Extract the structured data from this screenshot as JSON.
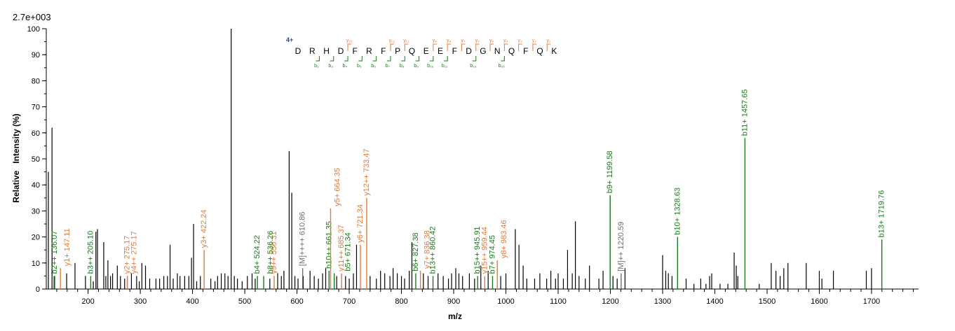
{
  "chart_data": {
    "type": "bar",
    "title": "",
    "max_intensity_label": "2.7e+003",
    "xlabel": "m/z",
    "ylabel": "Relative   Intensity (%)",
    "xlim": [
      120,
      1790
    ],
    "ylim": [
      0,
      100
    ],
    "x_ticks": [
      200,
      300,
      400,
      500,
      600,
      700,
      800,
      900,
      1000,
      1100,
      1200,
      1300,
      1400,
      1500,
      1600,
      1700
    ],
    "y_ticks": [
      0,
      10,
      20,
      30,
      40,
      50,
      60,
      70,
      80,
      90,
      100
    ],
    "colors": {
      "b_ion": "#1a7a1a",
      "y_ion": "#e07b3c",
      "precursor": "#6e6e6e",
      "noise": "#000000",
      "charge": "#1f3fbf"
    },
    "peptide": {
      "charge": "4+",
      "sequence": [
        "D",
        "R",
        "H",
        "D",
        "F",
        "R",
        "F",
        "P",
        "Q",
        "E",
        "E",
        "F",
        "D",
        "G",
        "N",
        "Q",
        "F",
        "Q",
        "K"
      ],
      "y_labels": [
        {
          "pos": 4,
          "label": "y₁₅"
        },
        {
          "pos": 7,
          "label": "y₁₂"
        },
        {
          "pos": 8,
          "label": "y₁₁"
        },
        {
          "pos": 10,
          "label": "y₉"
        },
        {
          "pos": 11,
          "label": "y₈"
        },
        {
          "pos": 12,
          "label": "y₇"
        },
        {
          "pos": 13,
          "label": "y₆"
        },
        {
          "pos": 14,
          "label": "y₅"
        },
        {
          "pos": 15,
          "label": "y₄"
        },
        {
          "pos": 16,
          "label": "y₃"
        },
        {
          "pos": 17,
          "label": "y₂"
        },
        {
          "pos": 18,
          "label": "y₁"
        }
      ],
      "b_labels": [
        {
          "pos": 1,
          "label": "b₂"
        },
        {
          "pos": 2,
          "label": "b₃"
        },
        {
          "pos": 3,
          "label": "b₄"
        },
        {
          "pos": 4,
          "label": "b₅"
        },
        {
          "pos": 5,
          "label": "b₆"
        },
        {
          "pos": 6,
          "label": "b₇"
        },
        {
          "pos": 7,
          "label": "b₈"
        },
        {
          "pos": 8,
          "label": "b₉"
        },
        {
          "pos": 9,
          "label": "b₁₀"
        },
        {
          "pos": 10,
          "label": "b₁₁"
        },
        {
          "pos": 12,
          "label": "b₁₃"
        },
        {
          "pos": 14,
          "label": "b₁₅"
        }
      ]
    },
    "annotated_peaks": [
      {
        "mz": 136.07,
        "intensity": 5,
        "label": "b2++ 136.07",
        "ion": "b"
      },
      {
        "mz": 147.11,
        "intensity": 8,
        "label": "y1+ 147.11",
        "ion": "y"
      },
      {
        "mz": 205.1,
        "intensity": 5,
        "label": "b3++ 205.10",
        "ion": "b"
      },
      {
        "mz": 275.17,
        "intensity": 5,
        "label": "y2+ 275.17",
        "ion": "y"
      },
      {
        "mz": 275.17,
        "intensity": 5,
        "label": "y4++ 275.17",
        "ion": "y"
      },
      {
        "mz": 422.24,
        "intensity": 15,
        "label": "y3+ 422.24",
        "ion": "y"
      },
      {
        "mz": 524.22,
        "intensity": 5,
        "label": "b4+ 524.22",
        "ion": "b"
      },
      {
        "mz": 536.26,
        "intensity": 5,
        "label": "b8++ 536.26",
        "ion": "b"
      },
      {
        "mz": 556.31,
        "intensity": 5,
        "label": "y9++ 556.31",
        "ion": "y"
      },
      {
        "mz": 610.86,
        "intensity": 8,
        "label": "[M]++++ 610.86",
        "ion": "m"
      },
      {
        "mz": 661.35,
        "intensity": 7,
        "label": "b10++ 661.35",
        "ion": "b"
      },
      {
        "mz": 664.35,
        "intensity": 31,
        "label": "y5+ 664.35",
        "ion": "y"
      },
      {
        "mz": 671.34,
        "intensity": 6,
        "label": "b5+ 671.34",
        "ion": "b"
      },
      {
        "mz": 685.37,
        "intensity": 6,
        "label": "y11++ 685.37",
        "ion": "y"
      },
      {
        "mz": 721.34,
        "intensity": 17,
        "label": "y6+ 721.34",
        "ion": "y"
      },
      {
        "mz": 733.47,
        "intensity": 35,
        "label": "y12++ 733.47",
        "ion": "y"
      },
      {
        "mz": 827.38,
        "intensity": 6,
        "label": "b6+ 827.38",
        "ion": "b"
      },
      {
        "mz": 836.38,
        "intensity": 7,
        "label": "y7+ 836.38",
        "ion": "y"
      },
      {
        "mz": 860.42,
        "intensity": 5,
        "label": "b13++ 860.42",
        "ion": "b"
      },
      {
        "mz": 945.91,
        "intensity": 5,
        "label": "b15++ 945.91",
        "ion": "b"
      },
      {
        "mz": 959.44,
        "intensity": 5,
        "label": "y15++ 959.44",
        "ion": "y"
      },
      {
        "mz": 974.45,
        "intensity": 5,
        "label": "b7+ 974.45",
        "ion": "b"
      },
      {
        "mz": 983.46,
        "intensity": 11,
        "label": "y8+ 983.46",
        "ion": "y"
      },
      {
        "mz": 1199.58,
        "intensity": 36,
        "label": "b9+ 1199.58",
        "ion": "b"
      },
      {
        "mz": 1220.59,
        "intensity": 6,
        "label": "[M]++ 1220.59",
        "ion": "m"
      },
      {
        "mz": 1328.63,
        "intensity": 20,
        "label": "b10+ 1328.63",
        "ion": "b"
      },
      {
        "mz": 1457.65,
        "intensity": 58,
        "label": "b11+ 1457.65",
        "ion": "b"
      },
      {
        "mz": 1719.76,
        "intensity": 19,
        "label": "b13+ 1719.76",
        "ion": "b"
      }
    ],
    "unannotated_peaks": [
      [
        124,
        45
      ],
      [
        131,
        62
      ],
      [
        135,
        5
      ],
      [
        159,
        6
      ],
      [
        175,
        10
      ],
      [
        195,
        5
      ],
      [
        210,
        3
      ],
      [
        215,
        22
      ],
      [
        218,
        23
      ],
      [
        230,
        18
      ],
      [
        234,
        5
      ],
      [
        238,
        11
      ],
      [
        243,
        5
      ],
      [
        247,
        6
      ],
      [
        256,
        9
      ],
      [
        262,
        5
      ],
      [
        270,
        4
      ],
      [
        283,
        6
      ],
      [
        293,
        5
      ],
      [
        298,
        3
      ],
      [
        303,
        10
      ],
      [
        310,
        9
      ],
      [
        318,
        4
      ],
      [
        330,
        4
      ],
      [
        337,
        4
      ],
      [
        345,
        5
      ],
      [
        352,
        5
      ],
      [
        357,
        17
      ],
      [
        363,
        4
      ],
      [
        371,
        6
      ],
      [
        376,
        5
      ],
      [
        385,
        5
      ],
      [
        393,
        5
      ],
      [
        398,
        12
      ],
      [
        402,
        25
      ],
      [
        408,
        3
      ],
      [
        415,
        5
      ],
      [
        435,
        4
      ],
      [
        443,
        3
      ],
      [
        448,
        5
      ],
      [
        455,
        6
      ],
      [
        462,
        6
      ],
      [
        468,
        5
      ],
      [
        474,
        100
      ],
      [
        480,
        5
      ],
      [
        486,
        4
      ],
      [
        495,
        3
      ],
      [
        505,
        5
      ],
      [
        514,
        6
      ],
      [
        520,
        4
      ],
      [
        548,
        4
      ],
      [
        563,
        6
      ],
      [
        570,
        5
      ],
      [
        575,
        7
      ],
      [
        585,
        53
      ],
      [
        590,
        37
      ],
      [
        596,
        5
      ],
      [
        602,
        4
      ],
      [
        612,
        5
      ],
      [
        625,
        7
      ],
      [
        633,
        5
      ],
      [
        641,
        4
      ],
      [
        649,
        6
      ],
      [
        655,
        8
      ],
      [
        676,
        5
      ],
      [
        693,
        5
      ],
      [
        700,
        4
      ],
      [
        708,
        6
      ],
      [
        714,
        17
      ],
      [
        740,
        5
      ],
      [
        752,
        4
      ],
      [
        760,
        7
      ],
      [
        768,
        6
      ],
      [
        778,
        5
      ],
      [
        784,
        8
      ],
      [
        792,
        6
      ],
      [
        800,
        5
      ],
      [
        806,
        4
      ],
      [
        815,
        7
      ],
      [
        820,
        18
      ],
      [
        842,
        6
      ],
      [
        851,
        5
      ],
      [
        870,
        6
      ],
      [
        880,
        5
      ],
      [
        890,
        4
      ],
      [
        896,
        6
      ],
      [
        904,
        8
      ],
      [
        910,
        6
      ],
      [
        917,
        5
      ],
      [
        930,
        6
      ],
      [
        940,
        4
      ],
      [
        952,
        9
      ],
      [
        966,
        7
      ],
      [
        990,
        5
      ],
      [
        1000,
        6
      ],
      [
        1018,
        23
      ],
      [
        1025,
        17
      ],
      [
        1033,
        9
      ],
      [
        1040,
        4
      ],
      [
        1055,
        4
      ],
      [
        1065,
        6
      ],
      [
        1078,
        4
      ],
      [
        1086,
        7
      ],
      [
        1095,
        4
      ],
      [
        1100,
        6
      ],
      [
        1110,
        4
      ],
      [
        1118,
        15
      ],
      [
        1127,
        6
      ],
      [
        1133,
        26
      ],
      [
        1140,
        5
      ],
      [
        1152,
        4
      ],
      [
        1160,
        9
      ],
      [
        1178,
        4
      ],
      [
        1186,
        7
      ],
      [
        1205,
        5
      ],
      [
        1213,
        4
      ],
      [
        1228,
        8
      ],
      [
        1300,
        13
      ],
      [
        1306,
        7
      ],
      [
        1311,
        6
      ],
      [
        1318,
        5
      ],
      [
        1345,
        4
      ],
      [
        1360,
        2
      ],
      [
        1373,
        4
      ],
      [
        1383,
        2
      ],
      [
        1390,
        5
      ],
      [
        1394,
        6
      ],
      [
        1410,
        2
      ],
      [
        1425,
        2
      ],
      [
        1437,
        14
      ],
      [
        1441,
        9
      ],
      [
        1444,
        5
      ],
      [
        1485,
        2
      ],
      [
        1508,
        10
      ],
      [
        1517,
        7
      ],
      [
        1525,
        5
      ],
      [
        1532,
        8
      ],
      [
        1540,
        10
      ],
      [
        1575,
        10
      ],
      [
        1600,
        7
      ],
      [
        1605,
        4
      ],
      [
        1627,
        7
      ],
      [
        1690,
        7
      ],
      [
        1700,
        8
      ]
    ]
  }
}
